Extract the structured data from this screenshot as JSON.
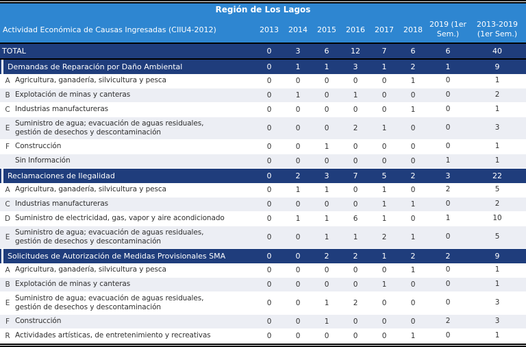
{
  "title": "Región de Los Lagos",
  "columns": {
    "activity": "Actividad Económica de Causas Ingresadas (CIIU4-2012)",
    "years": [
      "2013",
      "2014",
      "2015",
      "2016",
      "2017",
      "2018",
      "2019 (1er Sem.)",
      "2013-2019 (1er Sem.)"
    ]
  },
  "total": {
    "label": "TOTAL",
    "values": [
      "0",
      "3",
      "6",
      "12",
      "7",
      "6",
      "6",
      "40"
    ]
  },
  "sections": [
    {
      "label": "Demandas de Reparación por Daño Ambiental",
      "values": [
        "0",
        "1",
        "1",
        "3",
        "1",
        "2",
        "1",
        "9"
      ],
      "rows": [
        {
          "letter": "A",
          "label": "Agricultura, ganadería, silvicultura y pesca",
          "values": [
            "0",
            "0",
            "0",
            "0",
            "0",
            "1",
            "0",
            "1"
          ]
        },
        {
          "letter": "B",
          "label": "Explotación de minas y canteras",
          "values": [
            "0",
            "1",
            "0",
            "1",
            "0",
            "0",
            "0",
            "2"
          ]
        },
        {
          "letter": "C",
          "label": "Industrias manufactureras",
          "values": [
            "0",
            "0",
            "0",
            "0",
            "0",
            "1",
            "0",
            "1"
          ]
        },
        {
          "letter": "E",
          "label": "Suministro de agua; evacuación de aguas residuales,\ngestión de desechos y descontaminación",
          "values": [
            "0",
            "0",
            "0",
            "2",
            "1",
            "0",
            "0",
            "3"
          ]
        },
        {
          "letter": "F",
          "label": "Construcción",
          "values": [
            "0",
            "0",
            "1",
            "0",
            "0",
            "0",
            "0",
            "1"
          ]
        },
        {
          "letter": "",
          "label": "Sin Información",
          "values": [
            "0",
            "0",
            "0",
            "0",
            "0",
            "0",
            "1",
            "1"
          ]
        }
      ]
    },
    {
      "label": "Reclamaciones de Ilegalidad",
      "values": [
        "0",
        "2",
        "3",
        "7",
        "5",
        "2",
        "3",
        "22"
      ],
      "rows": [
        {
          "letter": "A",
          "label": "Agricultura, ganadería, silvicultura y pesca",
          "values": [
            "0",
            "1",
            "1",
            "0",
            "1",
            "0",
            "2",
            "5"
          ]
        },
        {
          "letter": "C",
          "label": "Industrias manufactureras",
          "values": [
            "0",
            "0",
            "0",
            "0",
            "1",
            "1",
            "0",
            "2"
          ]
        },
        {
          "letter": "D",
          "label": "Suministro de electricidad, gas, vapor y aire acondicionado",
          "values": [
            "0",
            "1",
            "1",
            "6",
            "1",
            "0",
            "1",
            "10"
          ]
        },
        {
          "letter": "E",
          "label": "Suministro de agua; evacuación de aguas residuales,\ngestión de desechos y descontaminación",
          "values": [
            "0",
            "0",
            "1",
            "1",
            "2",
            "1",
            "0",
            "5"
          ]
        }
      ]
    },
    {
      "label": "Solicitudes de Autorización de Medidas Provisionales SMA",
      "values": [
        "0",
        "0",
        "2",
        "2",
        "1",
        "2",
        "2",
        "9"
      ],
      "rows": [
        {
          "letter": "A",
          "label": "Agricultura, ganadería, silvicultura y pesca",
          "values": [
            "0",
            "0",
            "0",
            "0",
            "0",
            "1",
            "0",
            "1"
          ]
        },
        {
          "letter": "B",
          "label": "Explotación de minas y canteras",
          "values": [
            "0",
            "0",
            "0",
            "0",
            "1",
            "0",
            "0",
            "1"
          ]
        },
        {
          "letter": "E",
          "label": "Suministro de agua; evacuación de aguas residuales,\ngestión de desechos y descontaminación",
          "values": [
            "0",
            "0",
            "1",
            "2",
            "0",
            "0",
            "0",
            "3"
          ]
        },
        {
          "letter": "F",
          "label": "Construcción",
          "values": [
            "0",
            "0",
            "1",
            "0",
            "0",
            "0",
            "2",
            "3"
          ]
        },
        {
          "letter": "R",
          "label": "Actividades artísticas, de entretenimiento y recreativas",
          "values": [
            "0",
            "0",
            "0",
            "0",
            "0",
            "1",
            "0",
            "1"
          ]
        }
      ]
    }
  ],
  "colors": {
    "header_blue": "#2E86D1",
    "navy": "#1F3D7C",
    "stripe": "#ECEEF4",
    "text": "#333333"
  }
}
